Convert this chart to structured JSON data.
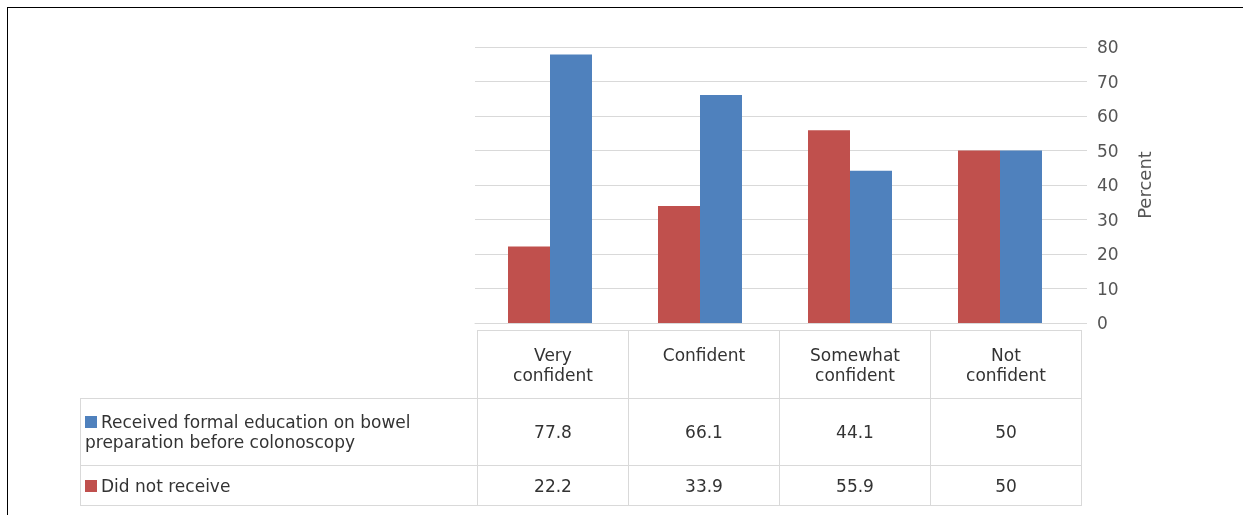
{
  "chart_data": {
    "type": "bar",
    "ylabel": "Percent",
    "categories": [
      "Very\nconfident",
      "Confident",
      "Somewhat\nconfident",
      "Not\nconfident"
    ],
    "series": [
      {
        "name": "Received formal education on bowel preparation before colonoscopy",
        "color": "#4f81bd",
        "values": [
          77.8,
          66.1,
          44.1,
          50
        ]
      },
      {
        "name": "Did not receive",
        "color": "#c0504d",
        "values": [
          22.2,
          33.9,
          55.9,
          50
        ]
      }
    ],
    "ylim": [
      0,
      80
    ],
    "yticks": [
      0,
      10,
      20,
      30,
      40,
      50,
      60,
      70,
      80
    ],
    "grid": "y",
    "legend": "bottom",
    "data_labels": true
  }
}
